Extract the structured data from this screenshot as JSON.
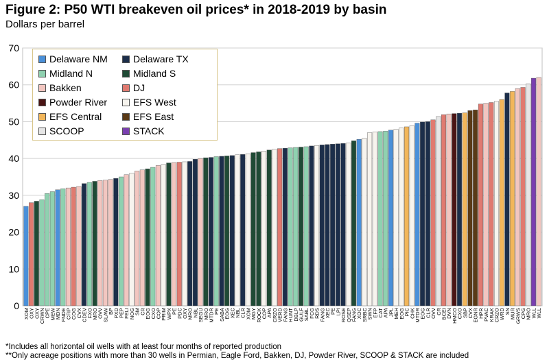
{
  "title": "Figure 2: P50 WTI breakeven oil prices* in 2018-2019 by basin",
  "subtitle": "Dollars per barrel",
  "footnotes": [
    "*Includes all horizontal oil wells with at least four months of reported production",
    "**Only acreage positions with more than 30 wells in Permian, Eagle Ford, Bakken, DJ, Powder River, SCOOP & STACK are included"
  ],
  "chart_data": {
    "type": "bar",
    "title": "Figure 2: P50 WTI breakeven oil prices* in 2018-2019 by basin",
    "ylabel": "",
    "xlabel": "",
    "ylim": [
      0,
      70
    ],
    "yticks": [
      0,
      10,
      20,
      30,
      40,
      50,
      60,
      70
    ],
    "grid": true,
    "legend_placement": "top-left",
    "series_colors": {
      "Delaware NM": "#4a90d9",
      "Delaware TX": "#1c2e4a",
      "Midland N": "#8fd1b0",
      "Midland S": "#1f4a35",
      "Bakken": "#f2c6c0",
      "DJ": "#e07a70",
      "Powder River": "#4a1414",
      "EFS West": "#f7f4ee",
      "EFS Central": "#f2b65a",
      "EFS East": "#5a3a16",
      "SCOOP": "#e6e6e6",
      "STACK": "#7a3fb0"
    },
    "legend": [
      "Delaware NM",
      "Delaware TX",
      "Midland N",
      "Midland S",
      "Bakken",
      "DJ",
      "Powder River",
      "EFS West",
      "EFS Central",
      "EFS East",
      "SCOOP",
      "STACK"
    ],
    "bars": [
      {
        "label": "XOM",
        "value": 27.0,
        "series": "Delaware NM"
      },
      {
        "label": "OXY",
        "value": 28.0,
        "series": "DJ"
      },
      {
        "label": "OXY",
        "value": 28.4,
        "series": "Midland S"
      },
      {
        "label": "CRWN",
        "value": 28.8,
        "series": "Midland N"
      },
      {
        "label": "CPE",
        "value": 30.5,
        "series": "Midland N"
      },
      {
        "label": "MEW",
        "value": 31.0,
        "series": "Midland N"
      },
      {
        "label": "MDN",
        "value": 31.5,
        "series": "Delaware NM"
      },
      {
        "label": "FNDE",
        "value": 31.8,
        "series": "Midland N"
      },
      {
        "label": "CFIP",
        "value": 32.0,
        "series": "Bakken"
      },
      {
        "label": "COG",
        "value": 32.2,
        "series": "DJ"
      },
      {
        "label": "CVX",
        "value": 32.4,
        "series": "Bakken"
      },
      {
        "label": "CDEV",
        "value": 33.2,
        "series": "Delaware TX"
      },
      {
        "label": "FXO",
        "value": 33.5,
        "series": "Midland N"
      },
      {
        "label": "MRO",
        "value": 33.8,
        "series": "Midland S"
      },
      {
        "label": "OVV",
        "value": 34.0,
        "series": "Bakken"
      },
      {
        "label": "SLAW",
        "value": 34.1,
        "series": "Bakken"
      },
      {
        "label": "BP",
        "value": 34.3,
        "series": "Bakken"
      },
      {
        "label": "PXD",
        "value": 34.6,
        "series": "Delaware TX"
      },
      {
        "label": "PEP",
        "value": 35.0,
        "series": "Midland N"
      },
      {
        "label": "FELI",
        "value": 35.6,
        "series": "Bakken"
      },
      {
        "label": "NOG",
        "value": 36.0,
        "series": "EFS West"
      },
      {
        "label": "SM",
        "value": 36.6,
        "series": "Bakken"
      },
      {
        "label": "CR",
        "value": 36.9,
        "series": "Bakken"
      },
      {
        "label": "EOG",
        "value": 37.2,
        "series": "Midland S"
      },
      {
        "label": "CXO",
        "value": 37.6,
        "series": "Midland N"
      },
      {
        "label": "COP",
        "value": 38.1,
        "series": "Bakken"
      },
      {
        "label": "PRIM",
        "value": 38.4,
        "series": "EFS West"
      },
      {
        "label": "WPX",
        "value": 38.8,
        "series": "Midland S"
      },
      {
        "label": "PE",
        "value": 38.9,
        "series": "Bakken"
      },
      {
        "label": "PDC",
        "value": 39.0,
        "series": "DJ"
      },
      {
        "label": "OXY",
        "value": 39.1,
        "series": "EFS West"
      },
      {
        "label": "MRO",
        "value": 39.2,
        "series": "Delaware TX"
      },
      {
        "label": "NBL",
        "value": 39.8,
        "series": "Delaware TX"
      },
      {
        "label": "SEGU",
        "value": 40.0,
        "series": "Bakken"
      },
      {
        "label": "MRO",
        "value": 40.2,
        "series": "Midland S"
      },
      {
        "label": "MTDR",
        "value": 40.3,
        "series": "Delaware TX"
      },
      {
        "label": "PE",
        "value": 40.5,
        "series": "Midland N"
      },
      {
        "label": "SABA",
        "value": 40.6,
        "series": "Delaware TX"
      },
      {
        "label": "EOG",
        "value": 40.7,
        "series": "Midland S"
      },
      {
        "label": "XEC",
        "value": 40.8,
        "series": "Delaware TX"
      },
      {
        "label": "NBL",
        "value": 41.0,
        "series": "EFS West"
      },
      {
        "label": "CLR",
        "value": 41.1,
        "series": "Delaware TX"
      },
      {
        "label": "XOM",
        "value": 41.3,
        "series": "EFS West"
      },
      {
        "label": "MGY",
        "value": 41.6,
        "series": "Midland S"
      },
      {
        "label": "ROCK",
        "value": 41.8,
        "series": "Midland S"
      },
      {
        "label": "COP",
        "value": 42.0,
        "series": "EFS West"
      },
      {
        "label": "APA",
        "value": 42.3,
        "series": "Midland S"
      },
      {
        "label": "CRZO",
        "value": 42.5,
        "series": "EFS West"
      },
      {
        "label": "VERD",
        "value": 42.7,
        "series": "DJ"
      },
      {
        "label": "FANG",
        "value": 42.8,
        "series": "Delaware TX"
      },
      {
        "label": "HUNT",
        "value": 42.9,
        "series": "Midland N"
      },
      {
        "label": "DBLP",
        "value": 43.0,
        "series": "Midland N"
      },
      {
        "label": "GULF",
        "value": 43.1,
        "series": "Midland S"
      },
      {
        "label": "SABL",
        "value": 43.2,
        "series": "Midland N"
      },
      {
        "label": "FCG",
        "value": 43.4,
        "series": "Delaware TX"
      },
      {
        "label": "RDS",
        "value": 43.5,
        "series": "EFS West"
      },
      {
        "label": "FANG",
        "value": 43.7,
        "series": "Delaware TX"
      },
      {
        "label": "XEC",
        "value": 43.8,
        "series": "Delaware TX"
      },
      {
        "label": "PE",
        "value": 43.9,
        "series": "Delaware TX"
      },
      {
        "label": "LPI",
        "value": 44.0,
        "series": "Delaware TX"
      },
      {
        "label": "ROSE",
        "value": 44.1,
        "series": "Delaware TX"
      },
      {
        "label": "QSEP",
        "value": 44.2,
        "series": "EFS West"
      },
      {
        "label": "FANG",
        "value": 44.8,
        "series": "Midland S"
      },
      {
        "label": "XOC",
        "value": 45.2,
        "series": "Delaware NM"
      },
      {
        "label": "SRBC",
        "value": 45.5,
        "series": "EFS West"
      },
      {
        "label": "SWN",
        "value": 47.0,
        "series": "EFS West"
      },
      {
        "label": "EFP",
        "value": 47.2,
        "series": "EFS West"
      },
      {
        "label": "CAT",
        "value": 47.3,
        "series": "Midland N"
      },
      {
        "label": "APA",
        "value": 47.4,
        "series": "Midland N"
      },
      {
        "label": "JPL",
        "value": 47.7,
        "series": "Delaware NM"
      },
      {
        "label": "MEH",
        "value": 47.9,
        "series": "EFS West"
      },
      {
        "label": "EOG",
        "value": 48.3,
        "series": "EFS West"
      },
      {
        "label": "PIC",
        "value": 48.6,
        "series": "EFS Central"
      },
      {
        "label": "CHK",
        "value": 48.9,
        "series": "EFS West"
      },
      {
        "label": "MTDR",
        "value": 49.6,
        "series": "Delaware NM"
      },
      {
        "label": "EOG",
        "value": 49.9,
        "series": "Delaware TX"
      },
      {
        "label": "CLR",
        "value": 50.0,
        "series": "Delaware TX"
      },
      {
        "label": "OVV",
        "value": 50.5,
        "series": "DJ"
      },
      {
        "label": "CR",
        "value": 51.4,
        "series": "SCOOP"
      },
      {
        "label": "BCEI",
        "value": 51.9,
        "series": "DJ"
      },
      {
        "label": "DVN",
        "value": 52.1,
        "series": "Bakken"
      },
      {
        "label": "HMCO",
        "value": 52.2,
        "series": "Powder River"
      },
      {
        "label": "CXO",
        "value": 52.3,
        "series": "Delaware TX"
      },
      {
        "label": "SBP",
        "value": 52.4,
        "series": "EFS Central"
      },
      {
        "label": "CVX",
        "value": 53.0,
        "series": "EFS East"
      },
      {
        "label": "EGNR",
        "value": 53.2,
        "series": "EFS East"
      },
      {
        "label": "HPR",
        "value": 54.8,
        "series": "DJ"
      },
      {
        "label": "PVAC",
        "value": 55.0,
        "series": "Bakken"
      },
      {
        "label": "KRAK",
        "value": 55.2,
        "series": "DJ"
      },
      {
        "label": "CRZO",
        "value": 55.5,
        "series": "EFS West"
      },
      {
        "label": "WRD",
        "value": 56.0,
        "series": "EFS Central"
      },
      {
        "label": "SN",
        "value": 57.8,
        "series": "Delaware TX"
      },
      {
        "label": "MUR",
        "value": 58.2,
        "series": "EFS Central"
      },
      {
        "label": "GRWS",
        "value": 59.0,
        "series": "Bakken"
      },
      {
        "label": "CPG",
        "value": 59.3,
        "series": "DJ"
      },
      {
        "label": "MRO",
        "value": 60.3,
        "series": "SCOOP"
      },
      {
        "label": "WLL",
        "value": 61.8,
        "series": "STACK"
      },
      {
        "label": "WLL",
        "value": 62.0,
        "series": "Bakken"
      }
    ]
  }
}
